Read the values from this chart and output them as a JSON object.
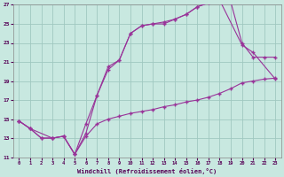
{
  "xlabel": "Windchill (Refroidissement éolien,°C)",
  "ylabel": "",
  "bg_color": "#c8e8e0",
  "grid_color": "#a0c8c0",
  "line_color": "#993399",
  "xlim": [
    -0.5,
    23.5
  ],
  "ylim": [
    11,
    27
  ],
  "xticks": [
    0,
    1,
    2,
    3,
    4,
    5,
    6,
    7,
    8,
    9,
    10,
    11,
    12,
    13,
    14,
    15,
    16,
    17,
    18,
    19,
    20,
    21,
    22,
    23
  ],
  "yticks": [
    11,
    13,
    15,
    17,
    19,
    21,
    23,
    25,
    27
  ],
  "line1_x": [
    0,
    1,
    2,
    3,
    4,
    5,
    6,
    7,
    8,
    9,
    10,
    11,
    12,
    13,
    14,
    15,
    16,
    17,
    18,
    19,
    20,
    21,
    22,
    23
  ],
  "line1_y": [
    14.8,
    14.0,
    13.0,
    13.0,
    13.2,
    11.3,
    13.5,
    17.5,
    20.5,
    21.2,
    24.0,
    24.8,
    25.0,
    25.2,
    25.5,
    26.0,
    26.8,
    27.2,
    27.5,
    27.3,
    23.0,
    21.5,
    21.5,
    21.5
  ],
  "line2_x": [
    0,
    1,
    3,
    4,
    5,
    6,
    7,
    8,
    9,
    10,
    11,
    12,
    13,
    14,
    15,
    16,
    17,
    18,
    20,
    21,
    23
  ],
  "line2_y": [
    14.8,
    14.0,
    13.0,
    13.2,
    11.3,
    14.5,
    17.5,
    20.2,
    21.2,
    24.0,
    24.8,
    25.0,
    25.0,
    25.5,
    26.0,
    26.8,
    27.2,
    27.5,
    22.8,
    22.0,
    19.2
  ],
  "line3_x": [
    0,
    1,
    2,
    3,
    4,
    5,
    6,
    7,
    8,
    9,
    10,
    11,
    12,
    13,
    14,
    15,
    16,
    17,
    18,
    19,
    20,
    21,
    22,
    23
  ],
  "line3_y": [
    14.8,
    14.0,
    13.0,
    13.0,
    13.2,
    11.3,
    13.2,
    14.5,
    15.0,
    15.3,
    15.6,
    15.8,
    16.0,
    16.3,
    16.5,
    16.8,
    17.0,
    17.3,
    17.7,
    18.2,
    18.8,
    19.0,
    19.2,
    19.3
  ]
}
